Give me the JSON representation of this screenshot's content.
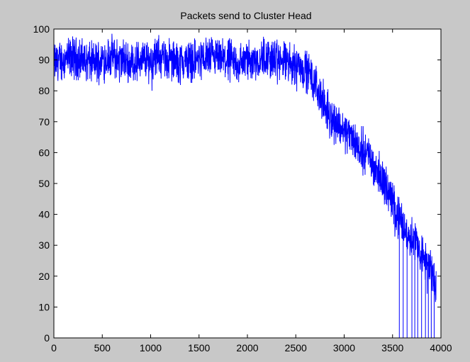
{
  "chart_data": {
    "type": "line",
    "title": "Packets send to Cluster Head",
    "xlabel": "",
    "ylabel": "",
    "xlim": [
      0,
      4000
    ],
    "ylim": [
      0,
      100
    ],
    "xticks": [
      0,
      500,
      1000,
      1500,
      2000,
      2500,
      3000,
      3500,
      4000
    ],
    "yticks": [
      0,
      10,
      20,
      30,
      40,
      50,
      60,
      70,
      80,
      90,
      100
    ],
    "grid": false,
    "colors": {
      "series": "#0000ff",
      "background": "#c8c8c8",
      "axes_background": "#ffffff"
    },
    "series": [
      {
        "x": [
          0,
          100,
          200,
          300,
          400,
          500,
          600,
          700,
          800,
          900,
          1000,
          1100,
          1200,
          1300,
          1400,
          1500,
          1600,
          1700,
          1800,
          1900,
          2000,
          2100,
          2200,
          2300,
          2400,
          2500,
          2550,
          2600,
          2650,
          2700,
          2750,
          2800,
          2850,
          2900,
          2950,
          3000,
          3050,
          3100,
          3150,
          3200,
          3250,
          3300,
          3350,
          3400,
          3450,
          3500,
          3550,
          3600,
          3650,
          3700,
          3750,
          3800,
          3850,
          3900,
          3950
        ],
        "y": [
          89,
          90,
          91,
          90,
          89,
          90,
          91,
          90,
          89,
          90,
          90,
          91,
          90,
          89,
          90,
          90,
          91,
          90,
          90,
          89,
          90,
          90,
          91,
          90,
          89,
          89,
          88,
          87,
          85,
          82,
          79,
          75,
          72,
          70,
          69,
          67,
          66,
          64,
          62,
          61,
          59,
          56,
          54,
          51,
          48,
          44,
          40,
          37,
          34,
          33,
          31,
          27,
          24,
          22,
          16
        ]
      }
    ],
    "dropouts_to_zero_x": [
      3570,
      3610,
      3650,
      3700,
      3730,
      3760,
      3800,
      3840,
      3870,
      3900,
      3930
    ]
  }
}
